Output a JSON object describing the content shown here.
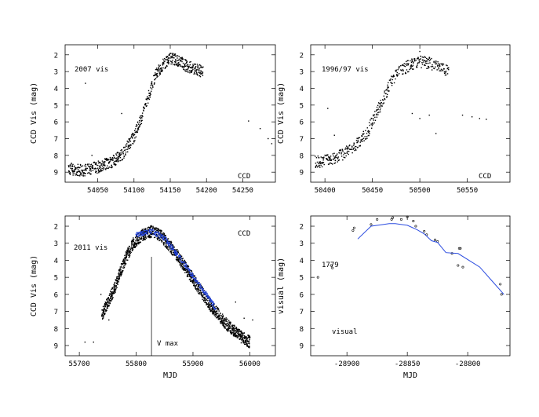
{
  "chart_data": [
    {
      "id": "tl",
      "type": "scatter",
      "title": "",
      "xlabel": "",
      "ylabel": "CCD Vis (mag)",
      "xlim": [
        54005,
        54295
      ],
      "ylim": [
        9.6,
        1.4
      ],
      "xticks": [
        54050,
        54100,
        54150,
        54200,
        54250
      ],
      "yticks": [
        2,
        3,
        4,
        5,
        6,
        7,
        8,
        9
      ],
      "labels": {
        "year": "2007 vis",
        "source": "CCD"
      },
      "series": [
        {
          "name": "CCD",
          "shape": [
            [
              54010,
              8.8
            ],
            [
              54030,
              8.9
            ],
            [
              54050,
              8.7
            ],
            [
              54070,
              8.4
            ],
            [
              54085,
              7.9
            ],
            [
              54100,
              6.9
            ],
            [
              54112,
              5.6
            ],
            [
              54122,
              4.2
            ],
            [
              54130,
              3.2
            ],
            [
              54140,
              2.6
            ],
            [
              54150,
              2.2
            ],
            [
              54160,
              2.3
            ],
            [
              54170,
              2.6
            ],
            [
              54180,
              2.8
            ],
            [
              54195,
              3.0
            ]
          ],
          "spread": 0.35,
          "density": 7,
          "outliers": [
            [
              54033,
              3.7
            ],
            [
              54083,
              5.5
            ],
            [
              54258,
              5.95
            ],
            [
              54274,
              6.4
            ],
            [
              54285,
              7.0
            ],
            [
              54290,
              7.3
            ],
            [
              54060,
              8.2
            ],
            [
              54042,
              8.0
            ]
          ]
        }
      ]
    },
    {
      "id": "tr",
      "type": "scatter",
      "title": "",
      "xlabel": "",
      "ylabel": "CCD Vis (mag)",
      "xlim": [
        50385,
        50595
      ],
      "ylim": [
        9.6,
        1.4
      ],
      "xticks": [
        50400,
        50450,
        50500,
        50550
      ],
      "yticks": [
        2,
        3,
        4,
        5,
        6,
        7,
        8,
        9
      ],
      "labels": {
        "year": "1996/97 vis",
        "source": "CCD"
      },
      "series": [
        {
          "name": "CCD",
          "shape": [
            [
              50390,
              8.4
            ],
            [
              50405,
              8.3
            ],
            [
              50420,
              7.9
            ],
            [
              50432,
              7.4
            ],
            [
              50445,
              6.6
            ],
            [
              50455,
              5.4
            ],
            [
              50463,
              4.5
            ],
            [
              50470,
              3.6
            ],
            [
              50478,
              3.0
            ],
            [
              50490,
              2.6
            ],
            [
              50500,
              2.4
            ],
            [
              50510,
              2.5
            ],
            [
              50520,
              2.7
            ],
            [
              50530,
              3.0
            ]
          ],
          "spread": 0.35,
          "density": 6,
          "outliers": [
            [
              50403,
              5.2
            ],
            [
              50410,
              6.8
            ],
            [
              50492,
              5.5
            ],
            [
              50500,
              5.8
            ],
            [
              50510,
              5.6
            ],
            [
              50517,
              6.7
            ],
            [
              50545,
              5.6
            ],
            [
              50555,
              5.7
            ],
            [
              50563,
              5.8
            ],
            [
              50570,
              5.85
            ],
            [
              50500,
              1.8
            ]
          ]
        }
      ]
    },
    {
      "id": "bl",
      "type": "scatter",
      "title": "",
      "xlabel": "MJD",
      "ylabel": "CCD Vis (mag)",
      "xlim": [
        55675,
        56045
      ],
      "ylim": [
        9.6,
        1.4
      ],
      "xticks": [
        55700,
        55800,
        55900,
        56000
      ],
      "yticks": [
        2,
        3,
        4,
        5,
        6,
        7,
        8,
        9
      ],
      "labels": {
        "year": "2011 vis",
        "source": "CCD",
        "marker": "V max"
      },
      "vmax_x": 55827,
      "series": [
        {
          "name": "visual",
          "shape": [
            [
              55740,
              7.2
            ],
            [
              55760,
              5.8
            ],
            [
              55780,
              4.0
            ],
            [
              55795,
              3.0
            ],
            [
              55810,
              2.55
            ],
            [
              55827,
              2.3
            ],
            [
              55845,
              2.6
            ],
            [
              55870,
              3.6
            ],
            [
              55900,
              5.1
            ],
            [
              55930,
              6.6
            ],
            [
              55960,
              7.8
            ],
            [
              55985,
              8.5
            ],
            [
              56000,
              8.8
            ]
          ],
          "spread": 0.35,
          "density": 11,
          "outliers": [
            [
              55710,
              8.8
            ],
            [
              55725,
              8.8
            ],
            [
              55738,
              6.0
            ],
            [
              55975,
              6.45
            ],
            [
              55990,
              7.4
            ],
            [
              56005,
              7.5
            ],
            [
              55752,
              7.5
            ]
          ]
        },
        {
          "name": "CCD",
          "color": "#1f3fd6",
          "shape": [
            [
              55800,
              2.5
            ],
            [
              55827,
              2.3
            ],
            [
              55850,
              2.7
            ],
            [
              55880,
              4.0
            ],
            [
              55910,
              5.4
            ],
            [
              55940,
              6.8
            ]
          ],
          "spread": 0.15,
          "density": 4,
          "outliers": []
        }
      ]
    },
    {
      "id": "br",
      "type": "scatter",
      "title": "",
      "xlabel": "MJD",
      "ylabel": "visual (mag)",
      "xlim": [
        -28930,
        -28765
      ],
      "ylim": [
        9.6,
        1.4
      ],
      "xticks": [
        -28900,
        -28850,
        -28800
      ],
      "yticks": [
        2,
        3,
        4,
        5,
        6,
        7,
        8,
        9
      ],
      "labels": {
        "year": "1779",
        "source": "visual"
      },
      "points": [
        [
          -28924,
          5.0
        ],
        [
          -28913,
          4.3
        ],
        [
          -28912,
          4.45
        ],
        [
          -28895,
          2.25
        ],
        [
          -28894,
          2.1
        ],
        [
          -28880,
          1.9
        ],
        [
          -28875,
          1.6
        ],
        [
          -28863,
          1.6
        ],
        [
          -28862,
          1.5
        ],
        [
          -28855,
          1.6
        ],
        [
          -28850,
          1.45
        ],
        [
          -28845,
          1.7
        ],
        [
          -28843,
          2.0
        ],
        [
          -28836,
          2.3
        ],
        [
          -28834,
          2.5
        ],
        [
          -28827,
          2.8
        ],
        [
          -28825,
          2.9
        ],
        [
          -28813,
          3.6
        ],
        [
          -28808,
          4.3
        ],
        [
          -28807,
          3.3
        ],
        [
          -28806,
          3.3
        ],
        [
          -28804,
          4.4
        ],
        [
          -28773,
          5.4
        ],
        [
          -28772,
          6.0
        ]
      ],
      "curve": [
        [
          -28891,
          2.75
        ],
        [
          -28880,
          2.0
        ],
        [
          -28870,
          1.9
        ],
        [
          -28865,
          1.85
        ],
        [
          -28860,
          1.85
        ],
        [
          -28850,
          1.95
        ],
        [
          -28842,
          2.2
        ],
        [
          -28836,
          2.45
        ],
        [
          -28830,
          2.85
        ],
        [
          -28825,
          2.95
        ],
        [
          -28818,
          3.55
        ],
        [
          -28808,
          3.6
        ],
        [
          -28790,
          4.4
        ],
        [
          -28780,
          5.2
        ],
        [
          -28770,
          6.0
        ]
      ]
    }
  ]
}
